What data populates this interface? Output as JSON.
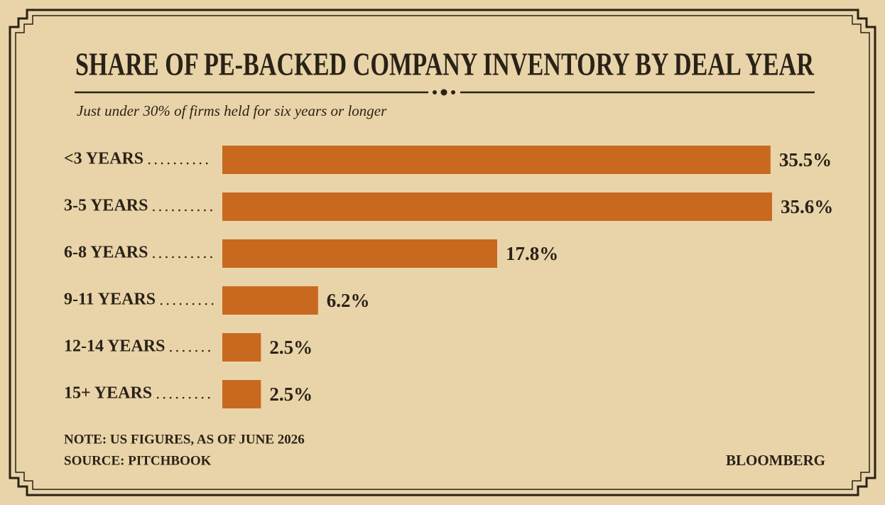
{
  "chart_data": {
    "type": "hbar",
    "title": "SHARE OF PE-BACKED COMPANY INVENTORY BY DEAL YEAR",
    "subtitle": "Just under 30% of firms held for six years or longer",
    "categories": [
      "<3 YEARS",
      "3-5 YEARS",
      "6-8 YEARS",
      "9-11 YEARS",
      "12-14 YEARS",
      "15+ YEARS"
    ],
    "values": [
      35.5,
      35.6,
      17.8,
      6.2,
      2.5,
      2.5
    ],
    "value_labels": [
      "35.5%",
      "35.6%",
      "17.8%",
      "6.2%",
      "2.5%",
      "2.5%"
    ],
    "color": "#c8691f",
    "note": "NOTE: US FIGURES, AS OF JUNE 2026",
    "source": "SOURCE: PITCHBOOK",
    "credit": "BLOOMBERG"
  }
}
